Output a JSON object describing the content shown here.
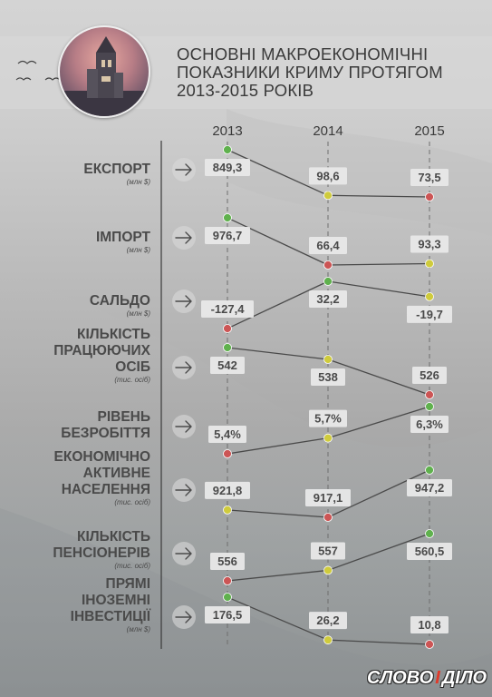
{
  "title": {
    "lines": [
      "ОСНОВНІ МАКРОЕКОНОМІЧНІ",
      "ПОКАЗНИКИ КРИМУ ПРОТЯГОМ",
      "2013-2015 РОКІВ"
    ]
  },
  "logo": {
    "left": "СЛОВО",
    "sep": "І",
    "right": "ДІЛО"
  },
  "colors": {
    "up": "#5fb14d",
    "down": "#cc5555",
    "mid": "#cfcb3c",
    "label_box": "#e8e8e8",
    "line": "#4a4a4a",
    "text": "#4a4a4a"
  },
  "chart_data": {
    "type": "line",
    "years": [
      "2013",
      "2014",
      "2015"
    ],
    "indicators": [
      {
        "name": "ЕКСПОРТ",
        "unit": "(млн $)",
        "values": [
          849.3,
          98.6,
          73.5
        ],
        "labels": [
          "849,3",
          "98,6",
          "73,5"
        ]
      },
      {
        "name": "ІМПОРТ",
        "unit": "(млн $)",
        "values": [
          976.7,
          66.4,
          93.3
        ],
        "labels": [
          "976,7",
          "66,4",
          "93,3"
        ]
      },
      {
        "name": "САЛЬДО",
        "unit": "(млн $)",
        "values": [
          -127.4,
          32.2,
          -19.7
        ],
        "labels": [
          "-127,4",
          "32,2",
          "-19,7"
        ]
      },
      {
        "name": "КІЛЬКІСТЬ ПРАЦЮЮЧИХ ОСІБ",
        "unit": "(тис. осіб)",
        "values": [
          542,
          538,
          526
        ],
        "labels": [
          "542",
          "538",
          "526"
        ]
      },
      {
        "name": "РІВЕНЬ БЕЗРОБІТТЯ",
        "unit": "",
        "values": [
          5.4,
          5.7,
          6.3
        ],
        "labels": [
          "5,4%",
          "5,7%",
          "6,3%"
        ]
      },
      {
        "name": "ЕКОНОМІЧНО АКТИВНЕ НАСЕЛЕННЯ",
        "unit": "(тис. осіб)",
        "values": [
          921.8,
          917.1,
          947.2
        ],
        "labels": [
          "921,8",
          "917,1",
          "947,2"
        ]
      },
      {
        "name": "КІЛЬКІСТЬ ПЕНСІОНЕРІВ",
        "unit": "(тис. осіб)",
        "values": [
          556,
          557,
          560.5
        ],
        "labels": [
          "556",
          "557",
          "560,5"
        ]
      },
      {
        "name": "ПРЯМІ ІНОЗЕМНІ ІНВЕСТИЦІЇ",
        "unit": "(млн $)",
        "values": [
          176.5,
          26.2,
          10.8
        ],
        "labels": [
          "176,5",
          "26,2",
          "10,8"
        ]
      }
    ]
  }
}
